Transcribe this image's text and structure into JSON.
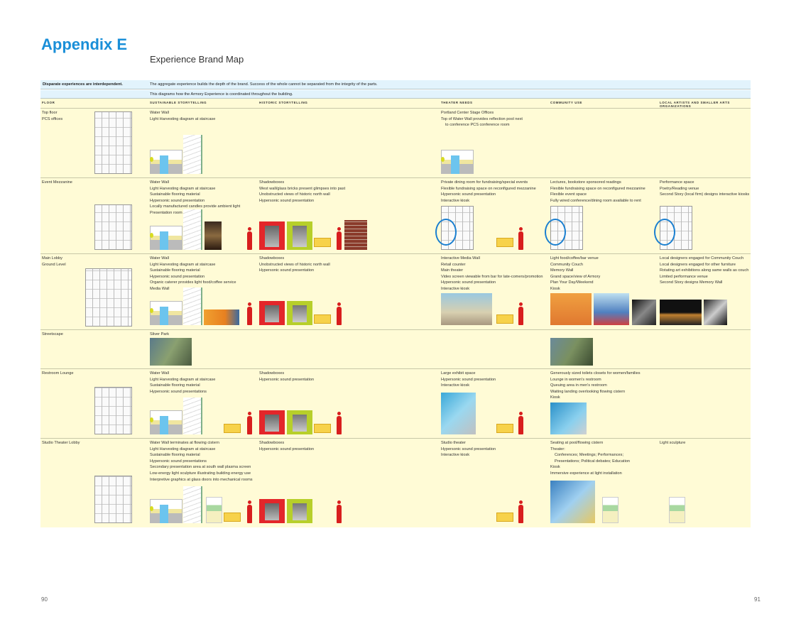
{
  "header": {
    "title": "Appendix E",
    "subtitle": "Experience Brand Map"
  },
  "intro": {
    "lead": "Disparate experiences are interdependent.",
    "line1": "The aggregate experience builds the depth of the brand. Success of the whole cannot be separated from the integrity of the parts.",
    "line2": "This diagrams how the Armory Experience is coordinated throughout the building."
  },
  "columns": [
    "Floor",
    "Sustainable storytelling",
    "Historic storytelling",
    "Theater needs",
    "Community use",
    "Local artists and smaller arts organizations"
  ],
  "rows": [
    {
      "floor": [
        "Top floor",
        "PCS offices"
      ],
      "sustainable": [
        "Water Wall",
        "Light Harvesting diagram at staircase"
      ],
      "historic": [],
      "theater": [
        "Portland Center Stage Offices",
        "Top of Water Wall provides reflection pool next",
        "   to conference PCS conference room"
      ],
      "community": [],
      "local": []
    },
    {
      "floor": [
        "Event Mezzanine"
      ],
      "sustainable": [
        "Water Wall",
        "Light Harvesting diagram at staircase",
        "Sustainable flooring material",
        "Hypersonic sound presentation",
        "Locally manufactured candles provide ambient light",
        "Presentation room"
      ],
      "historic": [
        "Shadowboxes",
        "West wall/glass bricks present glimpses into past",
        "Unobstructed views of historic north wall",
        "Hypersonic sound presentation"
      ],
      "theater": [
        "Private dining room for fundraising/special events",
        "Flexible fundraising space on reconfigured mezzanine",
        "Hypersonic sound presentation",
        "Interactive kiosk"
      ],
      "community": [
        "Lectures, bookstore sponsored readings",
        "Flexible fundraising space on reconfigured mezzanine",
        "Flexible event space",
        "Fully wired conference/dining room available to rent"
      ],
      "local": [
        "Performance space",
        "Poetry/Reading venue",
        "Second Story (local firm) designs interactive kiosks"
      ]
    },
    {
      "floor": [
        "Main Lobby",
        "Ground Level"
      ],
      "sustainable": [
        "Water Wall",
        "Light Harvesting diagram at staircase",
        "Sustainable flooring material",
        "Hypersonic sound presentation",
        "Organic caterer provides light food/coffee service",
        "Media Wall"
      ],
      "historic": [
        "Shadowboxes",
        "Unobstructed views of historic north wall",
        "Hypersonic sound presentation"
      ],
      "theater": [
        "Interactive Media Wall",
        "Retail counter",
        "Main theater",
        "Video screen viewable from bar for late-comers/promotion",
        "Hypersonic sound presentation",
        "Interactive kiosk"
      ],
      "community": [
        "Light food/coffee/bar venue",
        "Community Couch",
        "Memory Wall",
        "Grand space/view of Armory",
        "Plan Your Day/Weekend",
        "Kiosk"
      ],
      "local": [
        "Local designers engaged for Community Couch",
        "Local designers engaged for other furniture",
        "Rotating art exhibitions along same walls as couch",
        "Limited performance venue",
        "Second Story designs Memory Wall"
      ]
    },
    {
      "floor": [
        "Streetscape"
      ],
      "sustainable": [
        "Sliver Park"
      ],
      "historic": [],
      "theater": [],
      "community": [],
      "local": []
    },
    {
      "floor": [
        "Restroom Lounge"
      ],
      "sustainable": [
        "Water Wall",
        "Light Harvesting diagram at staircase",
        "Sustainable flooring material",
        "Hypersonic sound presentations"
      ],
      "historic": [
        "Shadowboxes",
        "Hypersonic sound presentation"
      ],
      "theater": [
        "Large exhibit space",
        "Hypersonic sound presentation",
        "Interactive kiosk"
      ],
      "community": [
        "Generously sized toilets closets for women/families",
        "Lounge in women's restroom",
        "Queuing area in men's restroom",
        "Waiting landing overlooking flowing cistern",
        "Kiosk"
      ],
      "local": []
    },
    {
      "floor": [
        "Studio Theater Lobby"
      ],
      "sustainable": [
        "Water Wall terminates at flowing cistern",
        "Light Harvesting diagram at staircase",
        "Sustainable flooring material",
        "Hypersonic sound presentations",
        "Secondary presentation area at south wall plasma screen",
        "Low-energy light sculpture illustrating building energy use",
        "Interpretive graphics at glass doors into mechanical rooms"
      ],
      "historic": [
        "Shadowboxes",
        "Hypersonic sound presentation"
      ],
      "theater": [
        "Studio theater",
        "Hypersonic sound presentation",
        "Interactive kiosk"
      ],
      "community": [
        "Seating at pool/flowing cistern",
        "Theater:",
        "   Conferences; Meetings; Performances;",
        "   Presentations; Political debates; Education",
        "Kiosk",
        "Immersive experience at light installation"
      ],
      "local": [
        "Light sculpture"
      ]
    }
  ],
  "pages": {
    "left": "90",
    "right": "91"
  },
  "colors": {
    "accent": "#1a8fd8",
    "table_bg": "#fffbd6",
    "band_bg": "#e2f3fc",
    "figure_red": "#d81e1e",
    "shadowbox_red": "#e3262a",
    "shadowbox_green": "#b7cf2a",
    "highlight_circle": "#1a7fd0"
  }
}
